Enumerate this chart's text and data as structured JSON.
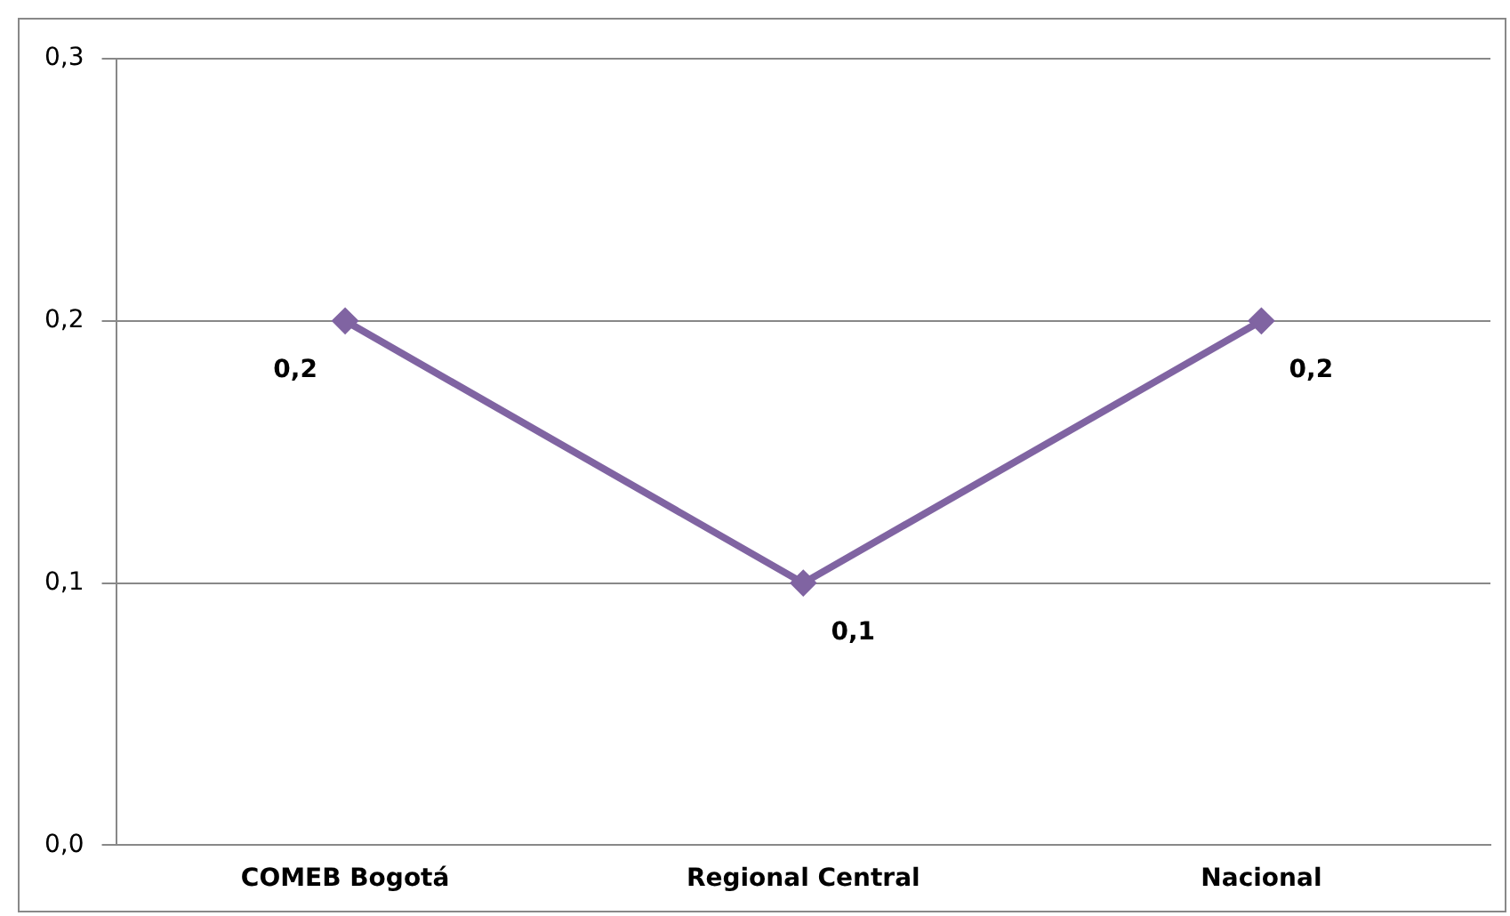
{
  "chart_data": {
    "type": "line",
    "categories": [
      "COMEB Bogotá",
      "Regional Central",
      "Nacional"
    ],
    "series": [
      {
        "color": "#8064a2",
        "values": [
          0.2,
          0.1,
          0.2
        ],
        "value_labels": [
          "0,2",
          "0,1",
          "0,2"
        ]
      }
    ],
    "ylim": [
      0,
      0.3
    ],
    "yticks": [
      {
        "value": 0,
        "label": "0,0"
      },
      {
        "value": 0.1,
        "label": "0,1"
      },
      {
        "value": 0.2,
        "label": "0,2"
      },
      {
        "value": 0.3,
        "label": "0,3"
      }
    ],
    "grid": "y",
    "legend": false,
    "marker": "diamond",
    "line_style": "solid"
  }
}
